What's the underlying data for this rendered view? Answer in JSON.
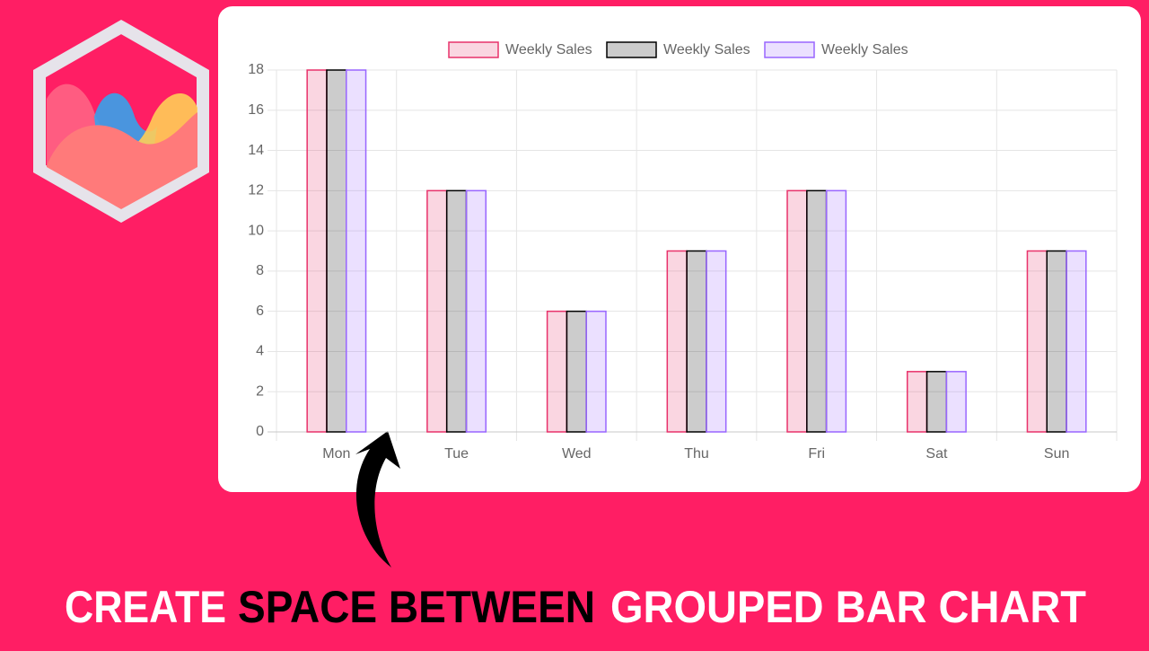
{
  "chart_data": {
    "type": "bar",
    "categories": [
      "Mon",
      "Tue",
      "Wed",
      "Thu",
      "Fri",
      "Sat",
      "Sun"
    ],
    "series": [
      {
        "name": "Weekly Sales",
        "color": "#e8326b",
        "values": [
          18,
          12,
          6,
          9,
          12,
          3,
          9
        ]
      },
      {
        "name": "Weekly Sales",
        "color": "#000000",
        "values": [
          18,
          12,
          6,
          9,
          12,
          3,
          9
        ]
      },
      {
        "name": "Weekly Sales",
        "color": "#9966ff",
        "values": [
          18,
          12,
          6,
          9,
          12,
          3,
          9
        ]
      }
    ],
    "ylim": [
      0,
      18
    ],
    "yticks": [
      0,
      2,
      4,
      6,
      8,
      10,
      12,
      14,
      16,
      18
    ],
    "grid": true,
    "legend": "top"
  },
  "caption": [
    "CREATE",
    "SPACE BETWEEN",
    "GROUPED BAR CHART"
  ]
}
